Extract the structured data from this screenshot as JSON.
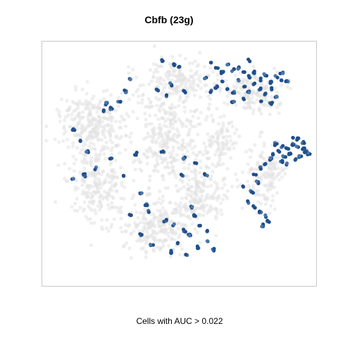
{
  "chart_data": {
    "type": "scatter",
    "title": "Cbfb (23g)",
    "caption": "Cells with AUC > 0.022",
    "xlabel": "",
    "ylabel": "",
    "grid": false,
    "legend": "none",
    "colors": {
      "background_cells": "#e2e2e2",
      "high_auc_cells": "#1f4f8c",
      "mid_auc_cells": "#4b76aa"
    },
    "series": [
      {
        "role": "background",
        "clusters": [
          {
            "cx": 0.18,
            "cy": 0.33,
            "rx": 0.12,
            "ry": 0.13,
            "n": 260
          },
          {
            "cx": 0.2,
            "cy": 0.58,
            "rx": 0.11,
            "ry": 0.16,
            "n": 240
          },
          {
            "cx": 0.45,
            "cy": 0.38,
            "rx": 0.14,
            "ry": 0.2,
            "n": 300
          },
          {
            "cx": 0.42,
            "cy": 0.76,
            "rx": 0.12,
            "ry": 0.12,
            "n": 240
          },
          {
            "cx": 0.58,
            "cy": 0.62,
            "rx": 0.1,
            "ry": 0.14,
            "n": 210
          },
          {
            "cx": 0.5,
            "cy": 0.15,
            "rx": 0.14,
            "ry": 0.09,
            "n": 180
          },
          {
            "cx": 0.77,
            "cy": 0.2,
            "rx": 0.1,
            "ry": 0.09,
            "n": 150
          },
          {
            "cx": 0.82,
            "cy": 0.55,
            "rx": 0.07,
            "ry": 0.15,
            "n": 150
          },
          {
            "cx": 0.66,
            "cy": 0.4,
            "rx": 0.06,
            "ry": 0.12,
            "n": 90
          }
        ]
      },
      {
        "role": "highlighted",
        "points": [
          [
            0.62,
            0.08
          ],
          [
            0.64,
            0.1
          ],
          [
            0.66,
            0.12
          ],
          [
            0.68,
            0.09
          ],
          [
            0.7,
            0.11
          ],
          [
            0.72,
            0.1
          ],
          [
            0.74,
            0.12
          ],
          [
            0.76,
            0.14
          ],
          [
            0.78,
            0.12
          ],
          [
            0.8,
            0.15
          ],
          [
            0.82,
            0.13
          ],
          [
            0.84,
            0.16
          ],
          [
            0.86,
            0.14
          ],
          [
            0.88,
            0.15
          ],
          [
            0.9,
            0.16
          ],
          [
            0.72,
            0.15
          ],
          [
            0.74,
            0.18
          ],
          [
            0.76,
            0.2
          ],
          [
            0.78,
            0.17
          ],
          [
            0.8,
            0.19
          ],
          [
            0.82,
            0.21
          ],
          [
            0.84,
            0.19
          ],
          [
            0.86,
            0.22
          ],
          [
            0.64,
            0.18
          ],
          [
            0.66,
            0.16
          ],
          [
            0.68,
            0.19
          ],
          [
            0.7,
            0.2
          ],
          [
            0.6,
            0.14
          ],
          [
            0.62,
            0.2
          ],
          [
            0.7,
            0.24
          ],
          [
            0.74,
            0.23
          ],
          [
            0.8,
            0.24
          ],
          [
            0.84,
            0.25
          ],
          [
            0.76,
            0.07
          ],
          [
            0.88,
            0.12
          ],
          [
            0.86,
            0.42
          ],
          [
            0.88,
            0.43
          ],
          [
            0.9,
            0.44
          ],
          [
            0.92,
            0.42
          ],
          [
            0.94,
            0.43
          ],
          [
            0.96,
            0.44
          ],
          [
            0.98,
            0.46
          ],
          [
            0.87,
            0.45
          ],
          [
            0.89,
            0.47
          ],
          [
            0.91,
            0.46
          ],
          [
            0.93,
            0.48
          ],
          [
            0.95,
            0.47
          ],
          [
            0.97,
            0.45
          ],
          [
            0.92,
            0.39
          ],
          [
            0.94,
            0.4
          ],
          [
            0.96,
            0.41
          ],
          [
            0.9,
            0.5
          ],
          [
            0.88,
            0.49
          ],
          [
            0.84,
            0.48
          ],
          [
            0.82,
            0.5
          ],
          [
            0.8,
            0.52
          ],
          [
            0.85,
            0.46
          ],
          [
            0.78,
            0.55
          ],
          [
            0.79,
            0.58
          ],
          [
            0.77,
            0.62
          ],
          [
            0.76,
            0.66
          ],
          [
            0.78,
            0.68
          ],
          [
            0.8,
            0.7
          ],
          [
            0.82,
            0.72
          ],
          [
            0.83,
            0.74
          ],
          [
            0.81,
            0.76
          ],
          [
            0.74,
            0.6
          ],
          [
            0.44,
            0.07
          ],
          [
            0.48,
            0.09
          ],
          [
            0.5,
            0.1
          ],
          [
            0.47,
            0.17
          ],
          [
            0.42,
            0.19
          ],
          [
            0.45,
            0.22
          ],
          [
            0.52,
            0.2
          ],
          [
            0.3,
            0.2
          ],
          [
            0.32,
            0.15
          ],
          [
            0.28,
            0.24
          ],
          [
            0.23,
            0.25
          ],
          [
            0.22,
            0.28
          ],
          [
            0.25,
            0.27
          ],
          [
            0.11,
            0.36
          ],
          [
            0.14,
            0.41
          ],
          [
            0.16,
            0.45
          ],
          [
            0.25,
            0.48
          ],
          [
            0.19,
            0.52
          ],
          [
            0.34,
            0.46
          ],
          [
            0.15,
            0.55
          ],
          [
            0.11,
            0.57
          ],
          [
            0.44,
            0.45
          ],
          [
            0.52,
            0.48
          ],
          [
            0.56,
            0.5
          ],
          [
            0.6,
            0.55
          ],
          [
            0.51,
            0.55
          ],
          [
            0.3,
            0.55
          ],
          [
            0.36,
            0.63
          ],
          [
            0.38,
            0.67
          ],
          [
            0.39,
            0.7
          ],
          [
            0.32,
            0.72
          ],
          [
            0.45,
            0.74
          ],
          [
            0.48,
            0.76
          ],
          [
            0.52,
            0.78
          ],
          [
            0.54,
            0.8
          ],
          [
            0.58,
            0.76
          ],
          [
            0.6,
            0.78
          ],
          [
            0.56,
            0.72
          ],
          [
            0.5,
            0.83
          ],
          [
            0.4,
            0.84
          ],
          [
            0.47,
            0.87
          ],
          [
            0.53,
            0.88
          ],
          [
            0.57,
            0.85
          ],
          [
            0.63,
            0.86
          ],
          [
            0.61,
            0.82
          ],
          [
            0.36,
            0.8
          ],
          [
            0.55,
            0.68
          ]
        ]
      }
    ]
  }
}
